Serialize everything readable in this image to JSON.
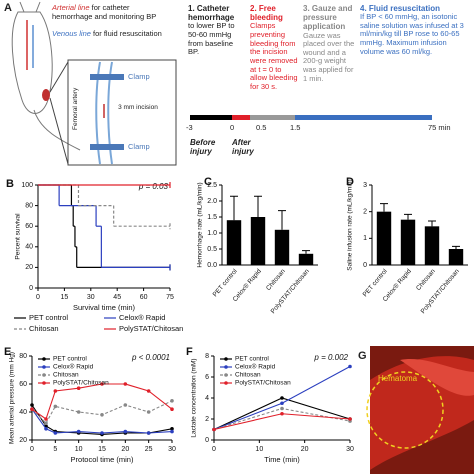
{
  "panel_a": {
    "label": "A",
    "arterial_title": "Arterial line",
    "arterial_desc": "for catheter hemorrhage and monitoring BP",
    "venous_title": "Venous line",
    "venous_desc": "for fluid resuscitation",
    "inset": {
      "vessel": "Femoral artery",
      "clamp_top": "Clamp",
      "incision": "3 mm incision",
      "clamp_bottom": "Clamp"
    },
    "steps": [
      {
        "title": "1. Catheter hemorrhage",
        "text": "to lower BP to 50-60 mmHg from baseline BP."
      },
      {
        "title": "2. Free bleeding",
        "text": "Clamps preventing bleeding from the incision were removed at t = 0 to allow bleeding for 30 s."
      },
      {
        "title": "3. Gauze and pressure application",
        "text": "Gauze was placed over the wound and a 200-g weight was applied for 1 min."
      },
      {
        "title": "4. Fluid resuscitation",
        "text": "If BP < 60 mmHg, an isotonic saline solution was infused at 3 ml/min/kg till BP rose to 60-65 mmHg. Maximum infusion volume was 60 ml/kg."
      }
    ],
    "timeline": {
      "ticks": [
        "-3",
        "0",
        "0.5",
        "1.5",
        "75 min"
      ],
      "before": "Before injury",
      "after": "After injury"
    }
  },
  "chart_data": [
    {
      "type": "step",
      "panel": "B",
      "ylabel": "Percent survival",
      "xlabel": "Survival time (min)",
      "annotation": "p = 0.03",
      "xlim": [
        0,
        75
      ],
      "xticks": [
        0,
        15,
        30,
        45,
        60,
        75
      ],
      "ylim": [
        0,
        100
      ],
      "yticks": [
        0,
        20,
        40,
        60,
        80,
        100
      ],
      "legend": "below",
      "series": [
        {
          "name": "PET control",
          "color": "#000000",
          "x": [
            0,
            19,
            20,
            21,
            22,
            75
          ],
          "values": [
            100,
            80,
            60,
            40,
            20,
            20
          ]
        },
        {
          "name": "Celox® Rapid",
          "color": "#2b3fbf",
          "x": [
            0,
            12,
            33,
            36,
            75
          ],
          "values": [
            100,
            80,
            60,
            20,
            20
          ]
        },
        {
          "name": "Chitosan",
          "color": "#888888",
          "dash": true,
          "x": [
            0,
            23,
            43,
            75
          ],
          "values": [
            100,
            80,
            60,
            60
          ]
        },
        {
          "name": "PolySTAT/Chitosan",
          "color": "#e0202a",
          "x": [
            0,
            75
          ],
          "values": [
            100,
            100
          ]
        }
      ]
    },
    {
      "type": "bar",
      "panel": "C",
      "ylabel": "Hemorrhage rate (mL/kg/min)",
      "color": "#000000",
      "categories": [
        "PET control",
        "Celox® Rapid",
        "Chitosan",
        "PolySTAT/Chitosan"
      ],
      "values": [
        1.4,
        1.5,
        1.1,
        0.35
      ],
      "errors": [
        0.75,
        0.65,
        0.6,
        0.1
      ],
      "ylim": [
        0,
        2.5
      ],
      "yticks": [
        {
          "value": 0,
          "label": "0.0"
        },
        0.5,
        {
          "value": 1,
          "label": "1.0"
        },
        1.5,
        {
          "value": 2,
          "label": "2.0"
        },
        2.5
      ]
    },
    {
      "type": "bar",
      "panel": "D",
      "ylabel": "Saline infusion rate (mL/kg/min)",
      "color": "#000000",
      "categories": [
        "PET control",
        "Celox® Rapid",
        "Chitosan",
        "PolySTAT/Chitosan"
      ],
      "values": [
        2.0,
        1.7,
        1.45,
        0.6
      ],
      "errors": [
        0.3,
        0.2,
        0.2,
        0.1
      ],
      "ylim": [
        0,
        3
      ],
      "yticks": [
        0,
        1,
        2,
        3
      ]
    },
    {
      "type": "line",
      "panel": "E",
      "ylabel": "Mean arterial pressure (mm Hg)",
      "xlabel": "Protocol time (min)",
      "annotation": "p < 0.0001",
      "xlim": [
        0,
        30
      ],
      "xticks": [
        0,
        5,
        10,
        15,
        20,
        25,
        30
      ],
      "ylim": [
        20,
        80
      ],
      "yticks": [
        20,
        40,
        60,
        80
      ],
      "legend": "upper left",
      "x": [
        0,
        3,
        5,
        10,
        15,
        20,
        25,
        30
      ],
      "series": [
        {
          "name": "PET control",
          "color": "#000000",
          "values": [
            45,
            30,
            26,
            25,
            24,
            25,
            25,
            28
          ]
        },
        {
          "name": "Celox® Rapid",
          "color": "#2b3fbf",
          "values": [
            42,
            28,
            25,
            26,
            25,
            26,
            25,
            26
          ]
        },
        {
          "name": "Chitosan",
          "color": "#888888",
          "dash": true,
          "values": [
            42,
            32,
            44,
            40,
            38,
            45,
            40,
            48
          ]
        },
        {
          "name": "PolySTAT/Chitosan",
          "color": "#e0202a",
          "values": [
            42,
            35,
            55,
            57,
            60,
            60,
            55,
            42
          ]
        }
      ]
    },
    {
      "type": "line",
      "panel": "F",
      "ylabel": "Lactate concentration (mM)",
      "xlabel": "Time (min)",
      "annotation": "p = 0.002",
      "xlim": [
        0,
        30
      ],
      "xticks": [
        0,
        10,
        20,
        30
      ],
      "ylim": [
        0,
        8
      ],
      "yticks": [
        0,
        2,
        4,
        6,
        8
      ],
      "legend": "upper left",
      "x": [
        0,
        15,
        30
      ],
      "series": [
        {
          "name": "PET control",
          "color": "#000000",
          "values": [
            1,
            4,
            2
          ]
        },
        {
          "name": "Celox® Rapid",
          "color": "#2b3fbf",
          "values": [
            1,
            3.5,
            7
          ]
        },
        {
          "name": "Chitosan",
          "color": "#888888",
          "dash": true,
          "values": [
            1,
            3,
            1.8
          ]
        },
        {
          "name": "PolySTAT/Chitosan",
          "color": "#e0202a",
          "values": [
            1,
            2.5,
            2
          ]
        }
      ]
    }
  ],
  "panel_g": {
    "label": "G",
    "annotation": "Hematoma"
  }
}
